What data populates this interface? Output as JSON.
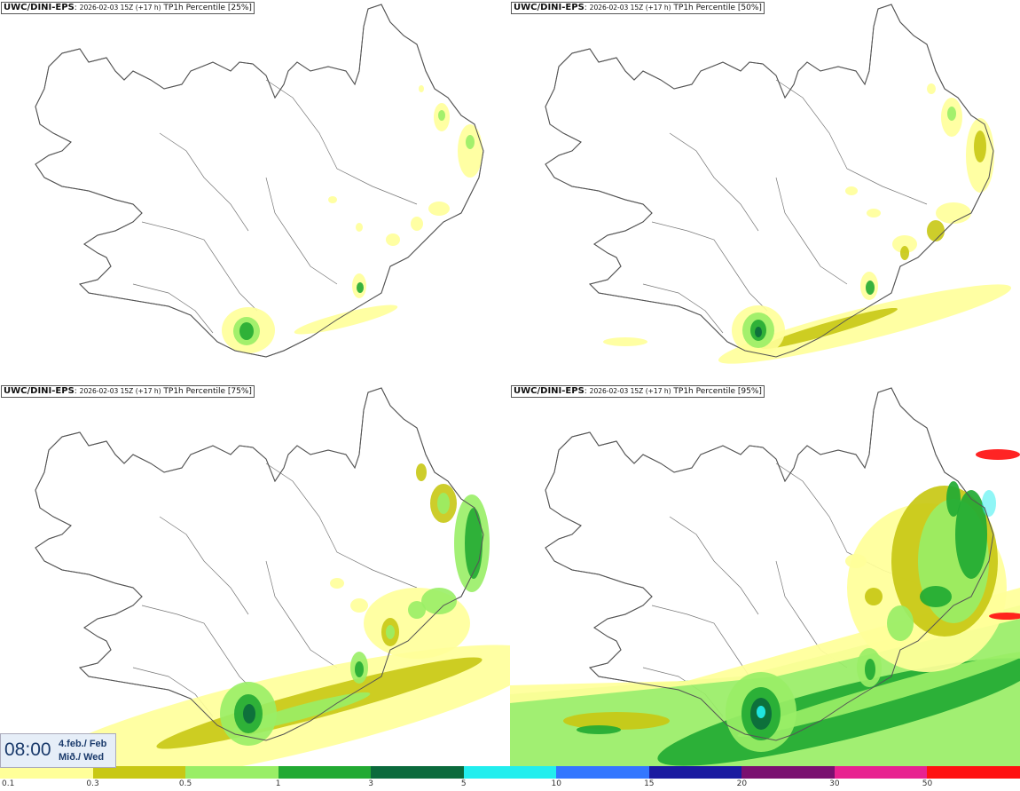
{
  "panels": [
    {
      "source": "UWC/DINI-EPS",
      "run": "2026-02-03 15Z (+17 h)",
      "title": "TP1h Percentile [25%]"
    },
    {
      "source": "UWC/DINI-EPS",
      "run": "2026-02-03 15Z (+17 h)",
      "title": "TP1h Percentile [50%]"
    },
    {
      "source": "UWC/DINI-EPS",
      "run": "2026-02-03 15Z (+17 h)",
      "title": "TP1h Percentile [75%]"
    },
    {
      "source": "UWC/DINI-EPS",
      "run": "2026-02-03 15Z (+17 h)",
      "title": "TP1h Percentile [95%]"
    }
  ],
  "time": {
    "hour": "08:00",
    "date_line1": "4.feb./ Feb",
    "date_line2": "Mið./ Wed"
  },
  "legend": {
    "labels": [
      "0.1",
      "0.3",
      "0.5",
      "1",
      "3",
      "5",
      "10",
      "15",
      "20",
      "30",
      "50"
    ],
    "colors": [
      "#ffff99",
      "#c8c814",
      "#99ee66",
      "#22aa33",
      "#0b6a3c",
      "#22eeee",
      "#3377ff",
      "#1a1aa0",
      "#7a1070",
      "#e82290",
      "#ff1111"
    ]
  },
  "map": {
    "land_fill": "#ffffff",
    "coast_color": "#555555"
  }
}
